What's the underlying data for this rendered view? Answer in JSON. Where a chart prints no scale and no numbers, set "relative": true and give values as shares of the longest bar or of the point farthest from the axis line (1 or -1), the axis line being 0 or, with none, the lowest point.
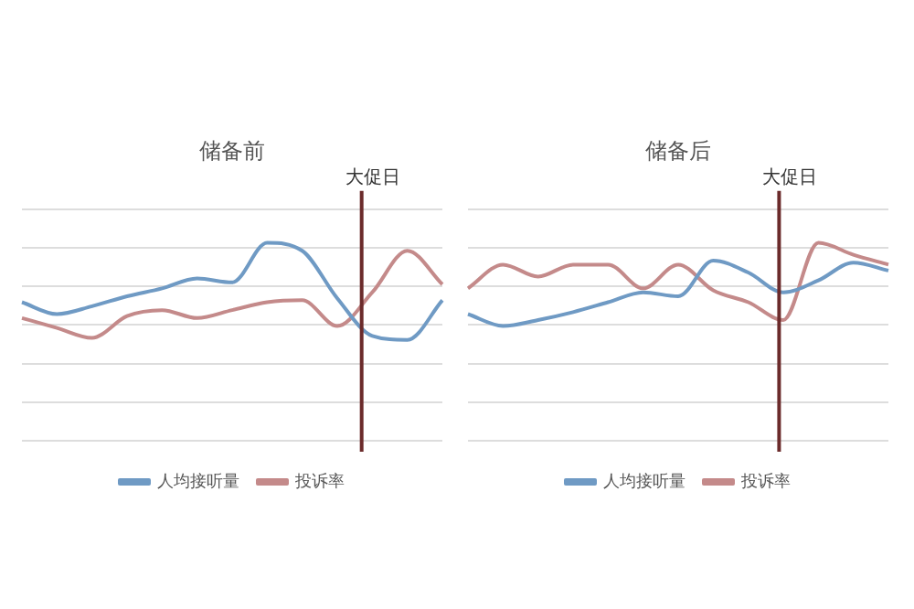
{
  "chart_data": [
    {
      "type": "line",
      "title": "储备前",
      "relative": true,
      "categories": [
        null,
        null,
        null,
        null,
        null,
        null,
        null,
        null,
        null,
        null,
        null,
        null,
        null
      ],
      "series": [
        {
          "name": "人均接听量",
          "color": "#6f9ac4",
          "values": [
            0.7,
            0.64,
            0.68,
            0.73,
            0.77,
            0.82,
            0.8,
            1,
            0.96,
            0.72,
            0.53,
            0.51,
            0.71
          ]
        },
        {
          "name": "投诉率",
          "color": "#c48a8a",
          "values": [
            0.62,
            0.57,
            0.52,
            0.63,
            0.66,
            0.62,
            0.66,
            0.7,
            0.71,
            0.58,
            0.75,
            0.96,
            0.79
          ]
        }
      ],
      "annotations": [
        "大促日"
      ],
      "grid": "y",
      "legend": "bottom",
      "marker": "none",
      "line_style": "solid"
    },
    {
      "type": "line",
      "title": "储备后",
      "relative": true,
      "categories": [
        null,
        null,
        null,
        null,
        null,
        null,
        null,
        null,
        null,
        null,
        null,
        null,
        null
      ],
      "series": [
        {
          "name": "人均接听量",
          "color": "#6f9ac4",
          "values": [
            0.64,
            0.58,
            0.61,
            0.65,
            0.7,
            0.75,
            0.73,
            0.91,
            0.85,
            0.75,
            0.81,
            0.9,
            0.86
          ]
        },
        {
          "name": "投诉率",
          "color": "#c48a8a",
          "values": [
            0.77,
            0.89,
            0.83,
            0.89,
            0.89,
            0.77,
            0.89,
            0.76,
            0.7,
            0.61,
            1,
            0.94,
            0.89
          ]
        }
      ],
      "annotations": [
        "大促日"
      ],
      "grid": "y",
      "legend": "bottom",
      "marker": "none",
      "line_style": "solid"
    }
  ]
}
